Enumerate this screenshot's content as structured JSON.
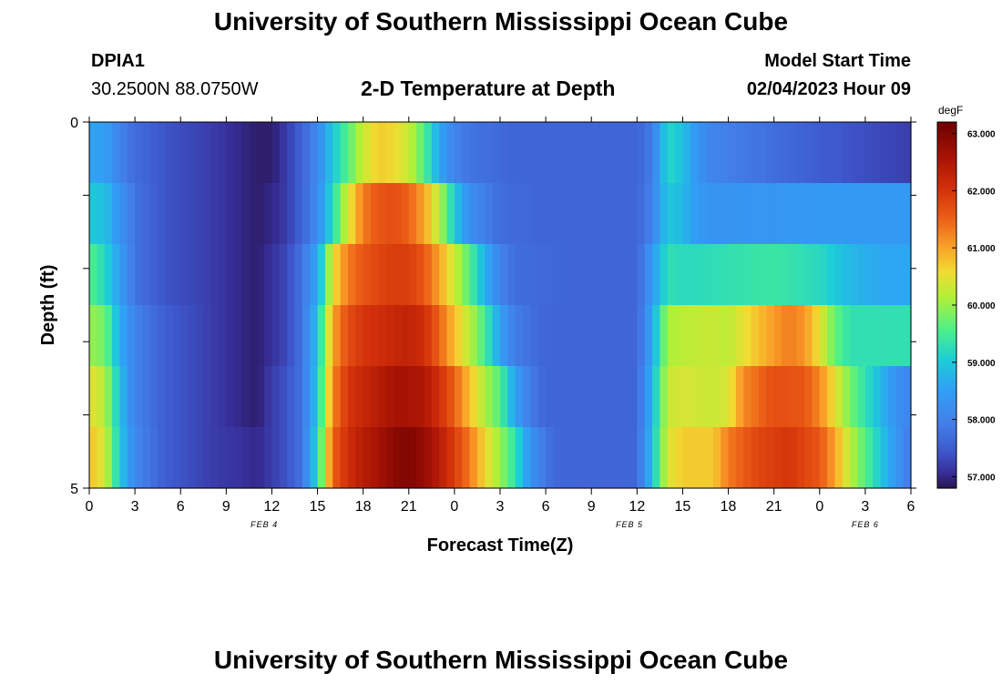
{
  "header": {
    "title": "University of Southern Mississippi Ocean Cube",
    "station_id": "DPIA1",
    "station_coords": "30.2500N  88.0750W",
    "plot_title": "2-D Temperature at Depth",
    "model_start_label": "Model Start Time",
    "model_start_value": "02/04/2023 Hour 09"
  },
  "footer": {
    "title": "University of Southern Mississippi Ocean Cube"
  },
  "chart_data": {
    "type": "heatmap",
    "title": "2-D Temperature at Depth",
    "xlabel": "Forecast Time(Z)",
    "ylabel": "Depth (ft)",
    "x_tick_labels": [
      "0",
      "3",
      "6",
      "9",
      "12",
      "15",
      "18",
      "21",
      "0",
      "3",
      "6",
      "9",
      "12",
      "15",
      "18",
      "21",
      "0",
      "3",
      "6"
    ],
    "date_labels": [
      "FEB 4",
      "FEB 5",
      "FEB 6"
    ],
    "y_tick_labels": [
      "0",
      "5"
    ],
    "ylim": [
      0,
      5
    ],
    "x_hours": [
      0,
      54
    ],
    "depth_layers_ft": [
      0,
      1,
      2,
      3,
      4,
      5
    ],
    "colorbar": {
      "unit": "degF",
      "min": 56.8,
      "max": 63.2,
      "tick_values": [
        57.0,
        58.0,
        59.0,
        60.0,
        61.0,
        62.0,
        63.0
      ],
      "tick_labels": [
        "57.000",
        "58.000",
        "59.000",
        "60.000",
        "61.000",
        "62.000",
        "63.000"
      ]
    },
    "temperature_keyframes_by_layer": [
      [
        [
          0,
          58.6
        ],
        [
          1,
          58.5
        ],
        [
          2,
          58.0
        ],
        [
          3,
          57.7
        ],
        [
          5,
          57.4
        ],
        [
          8,
          57.2
        ],
        [
          10,
          57.0
        ],
        [
          11,
          56.9
        ],
        [
          12,
          56.9
        ],
        [
          13,
          57.2
        ],
        [
          14,
          57.6
        ],
        [
          15,
          58.1
        ],
        [
          16,
          59.0
        ],
        [
          17,
          59.6
        ],
        [
          18,
          60.3
        ],
        [
          19,
          60.7
        ],
        [
          20,
          60.6
        ],
        [
          21,
          60.3
        ],
        [
          22,
          59.6
        ],
        [
          23,
          58.6
        ],
        [
          24,
          58.0
        ],
        [
          25,
          57.8
        ],
        [
          28,
          57.6
        ],
        [
          32,
          57.6
        ],
        [
          36,
          57.6
        ],
        [
          37,
          57.9
        ],
        [
          38,
          59.2
        ],
        [
          39,
          58.9
        ],
        [
          40,
          58.3
        ],
        [
          41,
          58.0
        ],
        [
          44,
          57.8
        ],
        [
          48,
          57.5
        ],
        [
          52,
          57.3
        ],
        [
          54,
          57.2
        ]
      ],
      [
        [
          0,
          59.0
        ],
        [
          1,
          58.9
        ],
        [
          2,
          58.3
        ],
        [
          3,
          57.8
        ],
        [
          5,
          57.4
        ],
        [
          8,
          57.2
        ],
        [
          10,
          57.0
        ],
        [
          11,
          56.9
        ],
        [
          12,
          57.0
        ],
        [
          13,
          57.2
        ],
        [
          14,
          57.6
        ],
        [
          15,
          58.2
        ],
        [
          16,
          59.2
        ],
        [
          17,
          60.4
        ],
        [
          18,
          61.3
        ],
        [
          19,
          61.6
        ],
        [
          20,
          61.7
        ],
        [
          21,
          61.5
        ],
        [
          22,
          61.0
        ],
        [
          23,
          60.2
        ],
        [
          24,
          59.0
        ],
        [
          25,
          58.2
        ],
        [
          27,
          57.7
        ],
        [
          30,
          57.6
        ],
        [
          36,
          57.6
        ],
        [
          37,
          58.0
        ],
        [
          38,
          59.0
        ],
        [
          39,
          58.8
        ],
        [
          40,
          58.4
        ],
        [
          41,
          58.3
        ],
        [
          48,
          58.4
        ],
        [
          54,
          58.4
        ]
      ],
      [
        [
          0,
          59.6
        ],
        [
          1,
          59.2
        ],
        [
          2,
          58.5
        ],
        [
          3,
          57.8
        ],
        [
          5,
          57.4
        ],
        [
          8,
          57.2
        ],
        [
          10,
          57.0
        ],
        [
          11,
          56.9
        ],
        [
          12,
          57.1
        ],
        [
          13,
          57.3
        ],
        [
          14,
          57.8
        ],
        [
          15,
          58.6
        ],
        [
          16,
          60.5
        ],
        [
          17,
          61.3
        ],
        [
          18,
          61.6
        ],
        [
          19,
          61.8
        ],
        [
          20,
          61.9
        ],
        [
          21,
          61.9
        ],
        [
          22,
          61.6
        ],
        [
          23,
          61.0
        ],
        [
          24,
          60.3
        ],
        [
          25,
          59.6
        ],
        [
          26,
          58.7
        ],
        [
          27,
          58.0
        ],
        [
          28,
          57.7
        ],
        [
          32,
          57.6
        ],
        [
          36,
          57.6
        ],
        [
          37,
          58.4
        ],
        [
          38,
          59.3
        ],
        [
          39,
          59.2
        ],
        [
          42,
          59.3
        ],
        [
          45,
          59.4
        ],
        [
          48,
          59.2
        ],
        [
          50,
          58.8
        ],
        [
          52,
          58.6
        ],
        [
          54,
          58.6
        ]
      ],
      [
        [
          0,
          60.0
        ],
        [
          1,
          59.8
        ],
        [
          2,
          58.7
        ],
        [
          3,
          58.0
        ],
        [
          5,
          57.5
        ],
        [
          8,
          57.2
        ],
        [
          10,
          57.0
        ],
        [
          11,
          56.9
        ],
        [
          12,
          57.1
        ],
        [
          13,
          57.3
        ],
        [
          14,
          57.8
        ],
        [
          15,
          58.9
        ],
        [
          16,
          61.0
        ],
        [
          17,
          61.7
        ],
        [
          18,
          62.0
        ],
        [
          19,
          62.1
        ],
        [
          20,
          62.2
        ],
        [
          21,
          62.3
        ],
        [
          22,
          62.1
        ],
        [
          23,
          61.5
        ],
        [
          24,
          60.8
        ],
        [
          25,
          60.2
        ],
        [
          26,
          59.5
        ],
        [
          27,
          58.5
        ],
        [
          28,
          57.9
        ],
        [
          30,
          57.6
        ],
        [
          36,
          57.6
        ],
        [
          37,
          58.6
        ],
        [
          38,
          60.1
        ],
        [
          39,
          60.2
        ],
        [
          41,
          60.3
        ],
        [
          42,
          60.2
        ],
        [
          44,
          60.8
        ],
        [
          46,
          61.3
        ],
        [
          47,
          61.1
        ],
        [
          48,
          60.5
        ],
        [
          49,
          59.7
        ],
        [
          50,
          59.3
        ],
        [
          52,
          59.3
        ],
        [
          54,
          59.3
        ]
      ],
      [
        [
          0,
          60.5
        ],
        [
          1,
          60.2
        ],
        [
          2,
          58.9
        ],
        [
          3,
          58.0
        ],
        [
          5,
          57.5
        ],
        [
          8,
          57.2
        ],
        [
          10,
          57.0
        ],
        [
          11,
          56.9
        ],
        [
          12,
          57.2
        ],
        [
          13,
          57.4
        ],
        [
          14,
          57.8
        ],
        [
          15,
          59.0
        ],
        [
          16,
          61.2
        ],
        [
          17,
          62.0
        ],
        [
          18,
          62.2
        ],
        [
          19,
          62.4
        ],
        [
          20,
          62.6
        ],
        [
          21,
          62.6
        ],
        [
          22,
          62.5
        ],
        [
          23,
          62.1
        ],
        [
          24,
          61.5
        ],
        [
          25,
          60.8
        ],
        [
          26,
          60.1
        ],
        [
          27,
          59.6
        ],
        [
          28,
          58.5
        ],
        [
          29,
          57.9
        ],
        [
          30,
          57.6
        ],
        [
          36,
          57.6
        ],
        [
          37,
          58.8
        ],
        [
          38,
          60.3
        ],
        [
          39,
          60.4
        ],
        [
          41,
          60.3
        ],
        [
          42,
          60.4
        ],
        [
          43,
          61.2
        ],
        [
          45,
          61.7
        ],
        [
          47,
          61.6
        ],
        [
          48,
          61.2
        ],
        [
          49,
          60.5
        ],
        [
          50,
          59.8
        ],
        [
          51,
          59.3
        ],
        [
          52,
          58.8
        ],
        [
          53,
          58.3
        ],
        [
          54,
          58.0
        ]
      ],
      [
        [
          0,
          60.8
        ],
        [
          1,
          60.4
        ],
        [
          2,
          59.0
        ],
        [
          3,
          58.1
        ],
        [
          5,
          57.5
        ],
        [
          8,
          57.2
        ],
        [
          10,
          57.1
        ],
        [
          11,
          57.0
        ],
        [
          12,
          57.2
        ],
        [
          13,
          57.4
        ],
        [
          14,
          57.8
        ],
        [
          15,
          59.2
        ],
        [
          16,
          61.5
        ],
        [
          17,
          62.1
        ],
        [
          18,
          62.4
        ],
        [
          19,
          62.6
        ],
        [
          20,
          62.9
        ],
        [
          21,
          63.0
        ],
        [
          22,
          62.8
        ],
        [
          23,
          62.4
        ],
        [
          24,
          61.9
        ],
        [
          25,
          61.3
        ],
        [
          26,
          60.6
        ],
        [
          27,
          60.0
        ],
        [
          28,
          59.3
        ],
        [
          29,
          58.3
        ],
        [
          30,
          57.8
        ],
        [
          31,
          57.6
        ],
        [
          36,
          57.6
        ],
        [
          37,
          58.9
        ],
        [
          38,
          60.4
        ],
        [
          39,
          60.7
        ],
        [
          41,
          60.7
        ],
        [
          42,
          61.3
        ],
        [
          44,
          61.8
        ],
        [
          46,
          62.0
        ],
        [
          48,
          61.6
        ],
        [
          49,
          61.0
        ],
        [
          50,
          60.2
        ],
        [
          51,
          59.6
        ],
        [
          52,
          59.0
        ],
        [
          53,
          58.4
        ],
        [
          54,
          57.8
        ]
      ]
    ]
  }
}
